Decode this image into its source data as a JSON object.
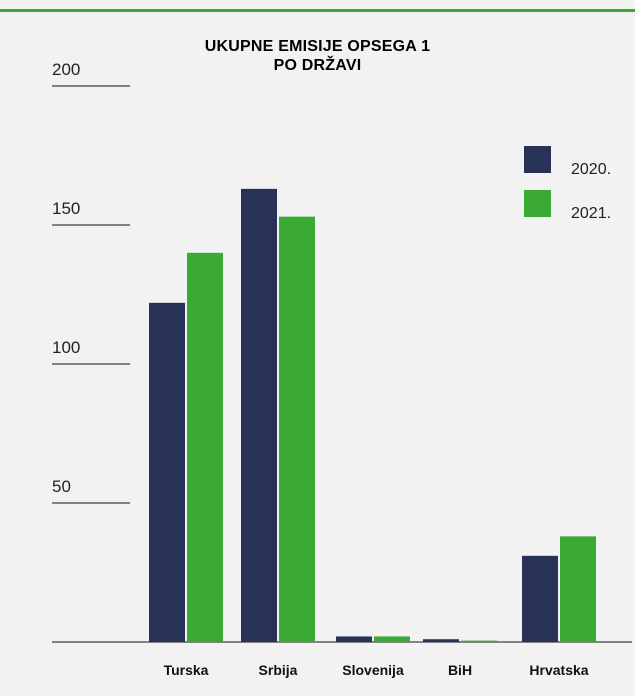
{
  "title_lines": [
    "UKUPNE EMISIJE OPSEGA 1",
    "PO DRŽAVI"
  ],
  "colors": {
    "accent": "#3aaa35",
    "series_2020": "#283259",
    "series_2021": "#3aaa35",
    "background": "#f2f2f2"
  },
  "chart_data": {
    "type": "bar",
    "title": "UKUPNE EMISIJE OPSEGA 1 PO DRŽAVI",
    "xlabel": "",
    "ylabel": "",
    "categories": [
      "Turska",
      "Srbija",
      "Slovenija",
      "BiH",
      "Hrvatska"
    ],
    "series": [
      {
        "name": "2020.",
        "values": [
          122,
          163,
          2,
          1,
          31
        ]
      },
      {
        "name": "2021.",
        "values": [
          140,
          153,
          2,
          0.5,
          38
        ]
      }
    ],
    "ylim": [
      0,
      215
    ],
    "y_ticks": [
      50,
      100,
      150,
      200
    ],
    "grid": false,
    "legend_position": "top-right"
  }
}
